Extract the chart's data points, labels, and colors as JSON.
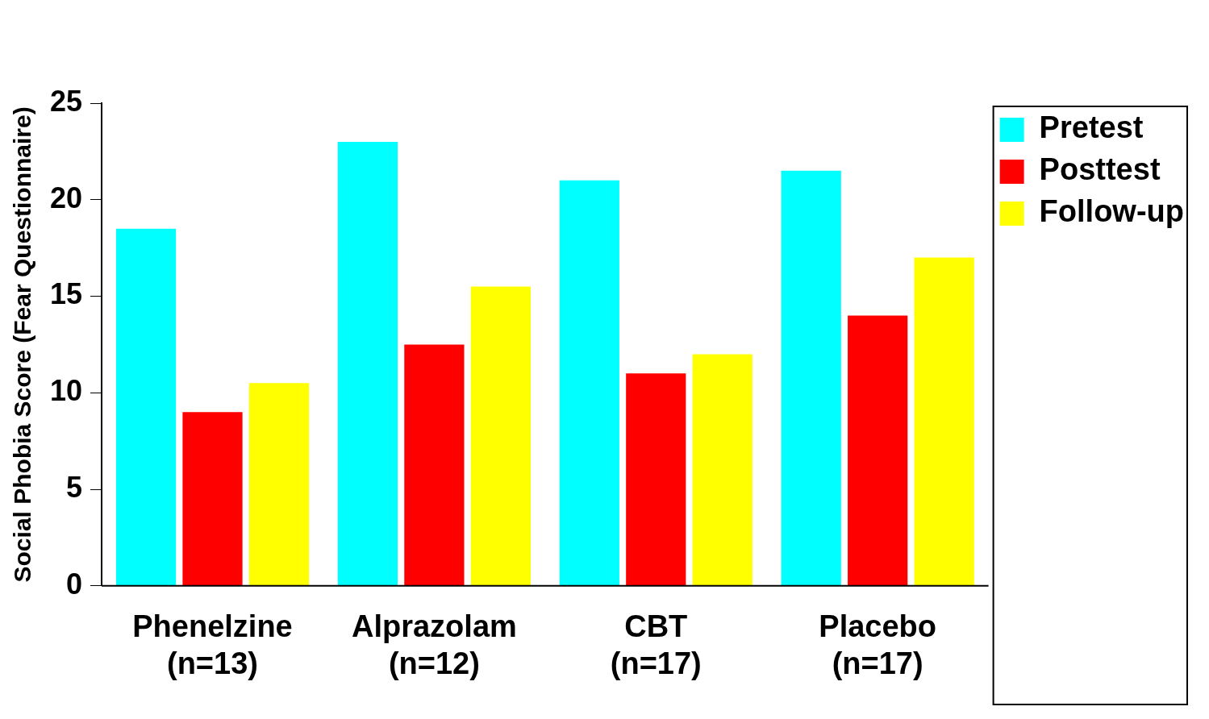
{
  "chart_data": {
    "type": "bar",
    "ylabel": "Social Phobia Score (Fear Questionnaire)",
    "categories": [
      "Phenelzine\n(n=13)",
      "Alprazolam\n(n=12)",
      "CBT\n(n=17)",
      "Placebo\n(n=17)"
    ],
    "series": [
      {
        "name": "Pretest",
        "color": "#00ffff",
        "values": [
          18.5,
          23,
          21,
          21.5
        ]
      },
      {
        "name": "Posttest",
        "color": "#ff0000",
        "values": [
          9,
          12.5,
          11,
          14
        ]
      },
      {
        "name": "Follow-up",
        "color": "#ffff00",
        "values": [
          10.5,
          15.5,
          12,
          17
        ]
      }
    ],
    "ylim": [
      0,
      25
    ],
    "yticks": [
      0,
      5,
      10,
      15,
      20,
      25
    ],
    "grid": false,
    "legend": "top right"
  }
}
